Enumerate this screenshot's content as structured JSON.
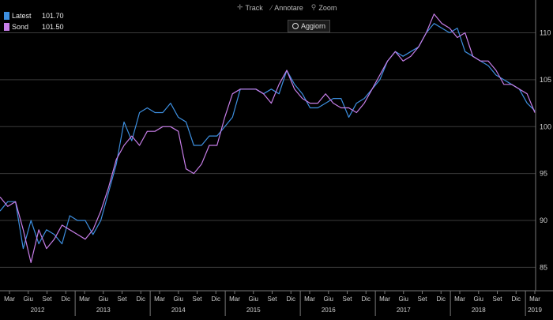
{
  "toolbar": {
    "track_label": "Track",
    "track_icon": "crosshair-icon",
    "annotate_label": "Annotare",
    "annotate_icon": "pencil-icon",
    "zoom_label": "Zoom",
    "zoom_icon": "magnifier-icon",
    "refresh_label": "Aggiorn",
    "refresh_icon": "refresh-icon"
  },
  "legend": [
    {
      "label": "Latest",
      "value": "101.70",
      "color": "#3d8fe0"
    },
    {
      "label": "Sond",
      "value": "101.50",
      "color": "#c77ee8"
    }
  ],
  "chart_data": {
    "type": "line",
    "ylim": [
      82.5,
      113.5
    ],
    "yticks": [
      85,
      90,
      95,
      100,
      105,
      110
    ],
    "grid": true,
    "y_axis_side": "right",
    "x_ticks": [
      "Mar",
      "Giu",
      "Set",
      "Dic",
      "Mar",
      "Giu",
      "Set",
      "Dic",
      "Mar",
      "Giu",
      "Set",
      "Dic",
      "Mar",
      "Giu",
      "Set",
      "Dic",
      "Mar",
      "Giu",
      "Set",
      "Dic",
      "Mar",
      "Giu",
      "Set",
      "Dic",
      "Mar",
      "Giu",
      "Set",
      "Dic",
      "Mar"
    ],
    "year_labels": [
      "2012",
      "2013",
      "2014",
      "2015",
      "2016",
      "2017",
      "2018",
      "2019"
    ],
    "series": [
      {
        "name": "Latest",
        "color": "#3d8fe0",
        "values": [
          91,
          92,
          92,
          87,
          90,
          87.5,
          89,
          88.5,
          87.5,
          90.5,
          90,
          90,
          88.5,
          90,
          93,
          96,
          100.5,
          98.5,
          101.5,
          102,
          101.5,
          101.5,
          102.5,
          101,
          100.5,
          98,
          98,
          99,
          99,
          100,
          101,
          104,
          104,
          104,
          103.5,
          104,
          103.5,
          106,
          104.5,
          103.5,
          102,
          102,
          102.5,
          103,
          103,
          101,
          102.5,
          103,
          104,
          105,
          107,
          108,
          107.5,
          108,
          108.5,
          110,
          111,
          110.5,
          110,
          110.5,
          108,
          107.5,
          107,
          106.5,
          105.5,
          105,
          104.5,
          104,
          102.5,
          101.7
        ]
      },
      {
        "name": "Sond",
        "color": "#c77ee8",
        "values": [
          92.5,
          91.5,
          92,
          89,
          85.5,
          89,
          87,
          88,
          89.5,
          89,
          88.5,
          88,
          89,
          91,
          93.5,
          96.5,
          98,
          99,
          98,
          99.5,
          99.5,
          100,
          100,
          99.5,
          95.5,
          95,
          96,
          98,
          98,
          101,
          103.5,
          104,
          104,
          104,
          103.5,
          102.5,
          104.5,
          106,
          104,
          103,
          102.5,
          102.5,
          103.5,
          102.5,
          102,
          102,
          101.5,
          102.5,
          104,
          105.5,
          107,
          108,
          107,
          107.5,
          108.5,
          110,
          112,
          111,
          110.5,
          109.5,
          110,
          107.5,
          107,
          107,
          106,
          104.5,
          104.5,
          104,
          103.5,
          101.5
        ]
      }
    ]
  }
}
